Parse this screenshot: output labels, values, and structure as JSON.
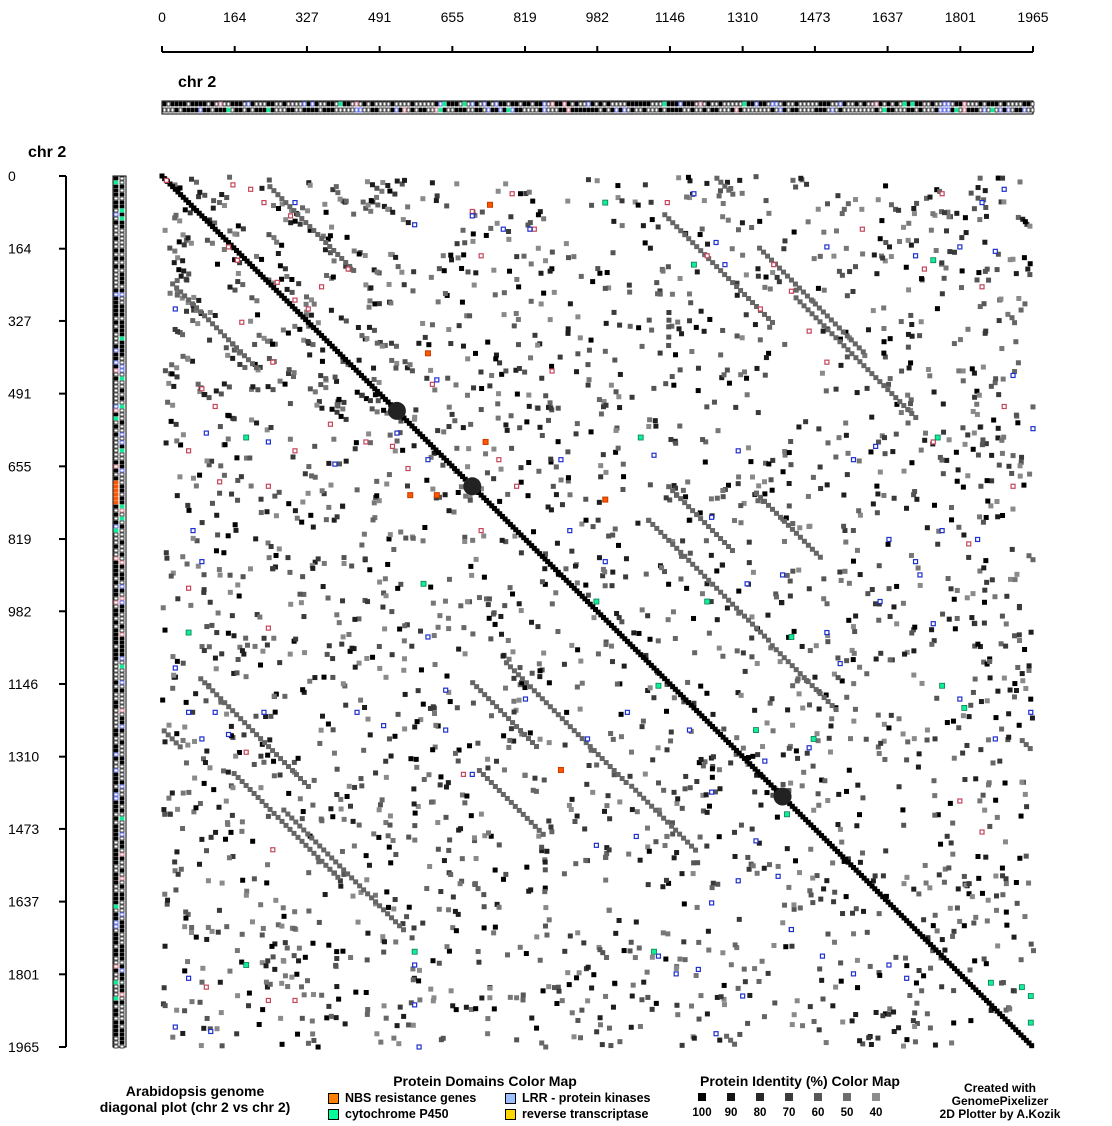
{
  "chart_data": {
    "type": "heatmap",
    "x_chromosome": "chr 2",
    "y_chromosome": "chr 2",
    "x_ticks": [
      0,
      164,
      327,
      491,
      655,
      819,
      982,
      1146,
      1310,
      1473,
      1637,
      1801,
      1965
    ],
    "y_ticks": [
      0,
      164,
      327,
      491,
      655,
      819,
      982,
      1146,
      1310,
      1473,
      1637,
      1801,
      1965
    ],
    "xlim": [
      0,
      1965
    ],
    "ylim": [
      0,
      1965
    ],
    "diagonal": [
      [
        0,
        0
      ],
      [
        1965,
        1965
      ]
    ],
    "nbs_points": [
      [
        10,
        10
      ],
      [
        160,
        20
      ],
      [
        200,
        30
      ],
      [
        230,
        60
      ],
      [
        290,
        90
      ],
      [
        150,
        160
      ],
      [
        170,
        190
      ],
      [
        260,
        240
      ],
      [
        300,
        280
      ],
      [
        180,
        330
      ],
      [
        330,
        300
      ],
      [
        360,
        250
      ],
      [
        420,
        210
      ],
      [
        250,
        420
      ],
      [
        120,
        520
      ],
      [
        90,
        480
      ],
      [
        60,
        620
      ],
      [
        130,
        690
      ],
      [
        240,
        700
      ],
      [
        300,
        620
      ],
      [
        380,
        560
      ],
      [
        460,
        600
      ],
      [
        520,
        610
      ],
      [
        555,
        660
      ],
      [
        610,
        470
      ],
      [
        700,
        80
      ],
      [
        720,
        180
      ],
      [
        790,
        40
      ],
      [
        840,
        120
      ],
      [
        880,
        440
      ],
      [
        760,
        640
      ],
      [
        800,
        700
      ],
      [
        720,
        800
      ],
      [
        1140,
        60
      ],
      [
        1230,
        180
      ],
      [
        1350,
        300
      ],
      [
        1420,
        260
      ],
      [
        1580,
        120
      ],
      [
        1720,
        210
      ],
      [
        1760,
        40
      ],
      [
        1850,
        250
      ],
      [
        1900,
        520
      ],
      [
        1920,
        700
      ],
      [
        1820,
        830
      ],
      [
        1740,
        600
      ],
      [
        1500,
        420
      ],
      [
        1460,
        350
      ],
      [
        1380,
        200
      ],
      [
        190,
        1300
      ],
      [
        250,
        1520
      ],
      [
        100,
        1830
      ],
      [
        240,
        1860
      ],
      [
        300,
        1860
      ],
      [
        680,
        1350
      ],
      [
        1800,
        1410
      ],
      [
        1850,
        1480
      ],
      [
        60,
        930
      ],
      [
        240,
        1020
      ]
    ],
    "nbs_red_points": [
      [
        740,
        65
      ],
      [
        730,
        600
      ],
      [
        600,
        400
      ],
      [
        900,
        1340
      ],
      [
        1000,
        730
      ],
      [
        560,
        720
      ],
      [
        620,
        720
      ]
    ],
    "lrr_points": [
      [
        300,
        60
      ],
      [
        30,
        300
      ],
      [
        100,
        580
      ],
      [
        70,
        800
      ],
      [
        90,
        870
      ],
      [
        240,
        600
      ],
      [
        390,
        650
      ],
      [
        530,
        580
      ],
      [
        570,
        110
      ],
      [
        620,
        460
      ],
      [
        600,
        640
      ],
      [
        700,
        90
      ],
      [
        770,
        120
      ],
      [
        830,
        120
      ],
      [
        900,
        640
      ],
      [
        920,
        800
      ],
      [
        1000,
        870
      ],
      [
        1110,
        630
      ],
      [
        1200,
        40
      ],
      [
        1250,
        150
      ],
      [
        1270,
        200
      ],
      [
        1300,
        620
      ],
      [
        1240,
        770
      ],
      [
        1320,
        920
      ],
      [
        1400,
        900
      ],
      [
        1500,
        160
      ],
      [
        1560,
        640
      ],
      [
        1610,
        610
      ],
      [
        1640,
        820
      ],
      [
        1700,
        180
      ],
      [
        1710,
        900
      ],
      [
        1760,
        800
      ],
      [
        1800,
        160
      ],
      [
        1840,
        820
      ],
      [
        1880,
        170
      ],
      [
        1920,
        450
      ],
      [
        1970,
        570
      ],
      [
        1850,
        60
      ],
      [
        1900,
        30
      ],
      [
        30,
        1110
      ],
      [
        60,
        1210
      ],
      [
        90,
        1270
      ],
      [
        120,
        1210
      ],
      [
        150,
        1260
      ],
      [
        230,
        1210
      ],
      [
        440,
        1210
      ],
      [
        500,
        1240
      ],
      [
        600,
        1040
      ],
      [
        640,
        1250
      ],
      [
        640,
        1160
      ],
      [
        700,
        1350
      ],
      [
        820,
        1180
      ],
      [
        960,
        1270
      ],
      [
        1050,
        1210
      ],
      [
        1190,
        1250
      ],
      [
        1240,
        1390
      ],
      [
        1360,
        1320
      ],
      [
        1460,
        1290
      ],
      [
        1500,
        1030
      ],
      [
        1530,
        1100
      ],
      [
        1620,
        960
      ],
      [
        1700,
        870
      ],
      [
        1740,
        1010
      ],
      [
        1800,
        1180
      ],
      [
        1880,
        1270
      ],
      [
        1960,
        1210
      ],
      [
        1070,
        1490
      ],
      [
        980,
        1510
      ],
      [
        1240,
        1640
      ],
      [
        1300,
        1590
      ],
      [
        1340,
        1500
      ],
      [
        1390,
        1580
      ],
      [
        1420,
        1700
      ],
      [
        1490,
        1760
      ],
      [
        1560,
        1800
      ],
      [
        1640,
        1780
      ],
      [
        1680,
        1810
      ],
      [
        1310,
        1850
      ],
      [
        1210,
        1790
      ],
      [
        1120,
        1760
      ],
      [
        60,
        1810
      ],
      [
        30,
        1920
      ],
      [
        110,
        1930
      ],
      [
        570,
        1780
      ],
      [
        570,
        1870
      ],
      [
        1250,
        1935
      ],
      [
        1160,
        1800
      ],
      [
        580,
        1990
      ]
    ],
    "p450_points": [
      [
        1000,
        60
      ],
      [
        1200,
        200
      ],
      [
        1740,
        190
      ],
      [
        190,
        590
      ],
      [
        1080,
        590
      ],
      [
        1750,
        590
      ],
      [
        1230,
        960
      ],
      [
        1420,
        1040
      ],
      [
        1120,
        1150
      ],
      [
        1760,
        1150
      ],
      [
        1810,
        1200
      ],
      [
        1470,
        1270
      ],
      [
        1340,
        1250
      ],
      [
        1410,
        1440
      ],
      [
        590,
        920
      ],
      [
        190,
        1780
      ],
      [
        570,
        1750
      ],
      [
        1110,
        1750
      ],
      [
        1960,
        1850
      ],
      [
        1870,
        1820
      ],
      [
        1940,
        1830
      ],
      [
        1960,
        1910
      ],
      [
        980,
        960
      ],
      [
        60,
        1030
      ]
    ],
    "y_track": "chr 2",
    "x_track": "chr 2"
  },
  "legend": {
    "domains_title": "Protein Domains Color Map",
    "domains": [
      {
        "label": "NBS resistance genes",
        "color": "#ff8000"
      },
      {
        "label": "LRR - protein kinases",
        "color": "#9bbfff"
      },
      {
        "label": "cytochrome P450",
        "color": "#00ff99"
      },
      {
        "label": "reverse transcriptase",
        "color": "#ffd700"
      }
    ],
    "identity_title": "Protein Identity (%) Color Map",
    "identity": [
      {
        "label": "100",
        "color": "#000000"
      },
      {
        "label": "90",
        "color": "#141414"
      },
      {
        "label": "80",
        "color": "#282828"
      },
      {
        "label": "70",
        "color": "#3c3c3c"
      },
      {
        "label": "60",
        "color": "#575757"
      },
      {
        "label": "50",
        "color": "#6e6e6e"
      },
      {
        "label": "40",
        "color": "#8c8c8c"
      }
    ]
  },
  "caption": {
    "line1": "Arabidopsis genome",
    "line2": "diagonal plot (chr 2 vs chr 2)"
  },
  "credit": {
    "line1": "Created with",
    "line2": "GenomePixelizer",
    "line3": "2D Plotter by A.Kozik"
  },
  "colors": {
    "nbs_outline": "#c4465a",
    "lrr_outline": "#1f2fcf",
    "p450_fill": "#11ee99",
    "nbs_fill": "#ff5500"
  }
}
